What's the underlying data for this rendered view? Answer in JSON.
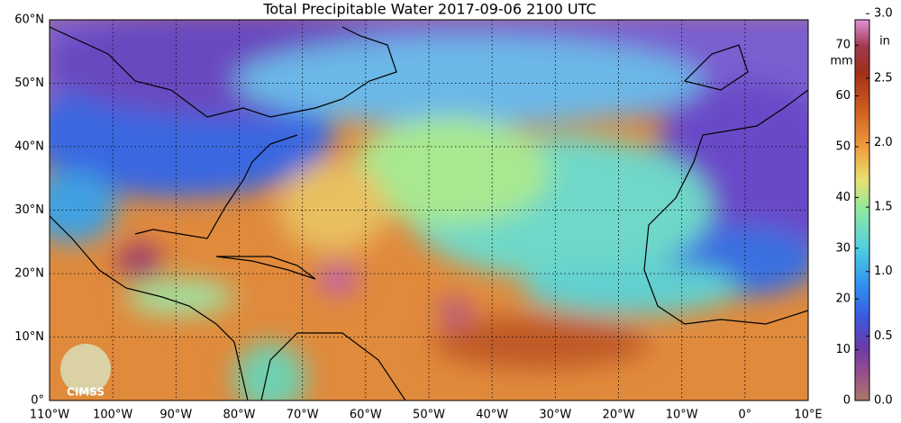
{
  "title": "Total Precipitable Water  2017-09-06 2100 UTC",
  "map": {
    "latitude_labels": [
      "0°",
      "10°N",
      "20°N",
      "30°N",
      "40°N",
      "50°N",
      "60°N"
    ],
    "longitude_labels": [
      "110°W",
      "100°W",
      "90°W",
      "80°W",
      "70°W",
      "60°W",
      "50°W",
      "40°W",
      "30°W",
      "20°W",
      "10°W",
      "0°",
      "10°E"
    ],
    "logo": "CIMSS"
  },
  "colorbar": {
    "mm_label": "mm",
    "in_label": "in",
    "mm_range": [
      0,
      75
    ],
    "mm_ticks": [
      0,
      10,
      20,
      30,
      40,
      50,
      60,
      70
    ],
    "in_ticks": [
      "0.0",
      "0.5",
      "1.0",
      "1.5",
      "2.0",
      "2.5",
      "3.0"
    ]
  }
}
